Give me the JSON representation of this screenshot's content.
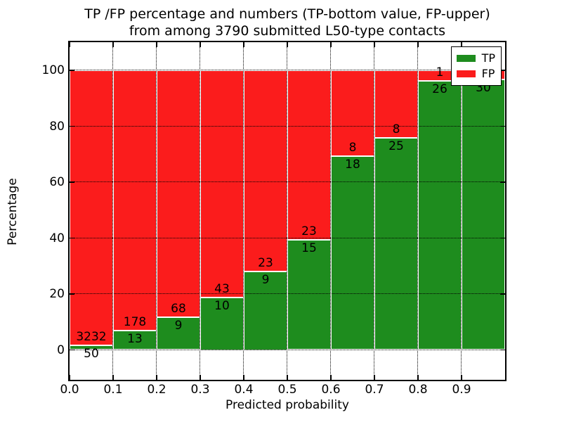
{
  "title": {
    "line1": "TP /FP percentage and numbers (TP-bottom value, FP-upper)",
    "line2": "from among 3790 submitted L50-type contacts"
  },
  "y_axis": {
    "label": "Percentage",
    "ticks": [
      "0",
      "20",
      "40",
      "60",
      "80",
      "100"
    ],
    "tick_values": [
      0,
      20,
      40,
      60,
      80,
      100
    ]
  },
  "x_axis": {
    "label": "Predicted probability",
    "ticks": [
      "0.0",
      "0.1",
      "0.2",
      "0.3",
      "0.4",
      "0.5",
      "0.6",
      "0.7",
      "0.8",
      "0.9"
    ]
  },
  "legend": {
    "position": "upper-right",
    "items": [
      {
        "label": "TP",
        "color": "#1e8c1e"
      },
      {
        "label": "FP",
        "color": "#fb1c1c"
      }
    ]
  },
  "colors": {
    "tp_green": "#1e8c1e",
    "fp_red": "#fb1c1c",
    "bar_edge": "#ffffff",
    "grid": "#000000",
    "background": "#ffffff"
  },
  "chart_data": {
    "type": "bar",
    "stacked": true,
    "normalized_to_percent": true,
    "title": "TP /FP percentage and numbers (TP-bottom value, FP-upper) from among 3790 submitted L50-type contacts",
    "xlabel": "Predicted probability",
    "ylabel": "Percentage",
    "total_contacts": 3790,
    "bin_starts": [
      0.0,
      0.1,
      0.2,
      0.3,
      0.4,
      0.5,
      0.6,
      0.7,
      0.8,
      0.9
    ],
    "bin_width": 0.1,
    "series": [
      {
        "name": "TP",
        "color": "#1e8c1e",
        "counts": [
          50,
          13,
          9,
          10,
          9,
          15,
          18,
          25,
          26,
          30
        ]
      },
      {
        "name": "FP",
        "color": "#fb1c1c",
        "counts": [
          3232,
          178,
          68,
          43,
          23,
          23,
          8,
          8,
          1,
          1
        ]
      }
    ],
    "tp_percentages": [
      1.52,
      6.81,
      11.69,
      18.87,
      28.13,
      39.47,
      69.23,
      75.76,
      96.3,
      96.77
    ],
    "xlim": [
      0.0,
      1.0
    ],
    "ylim": [
      -10.7,
      110
    ],
    "grid": "dotted",
    "legend_position": "upper right"
  }
}
